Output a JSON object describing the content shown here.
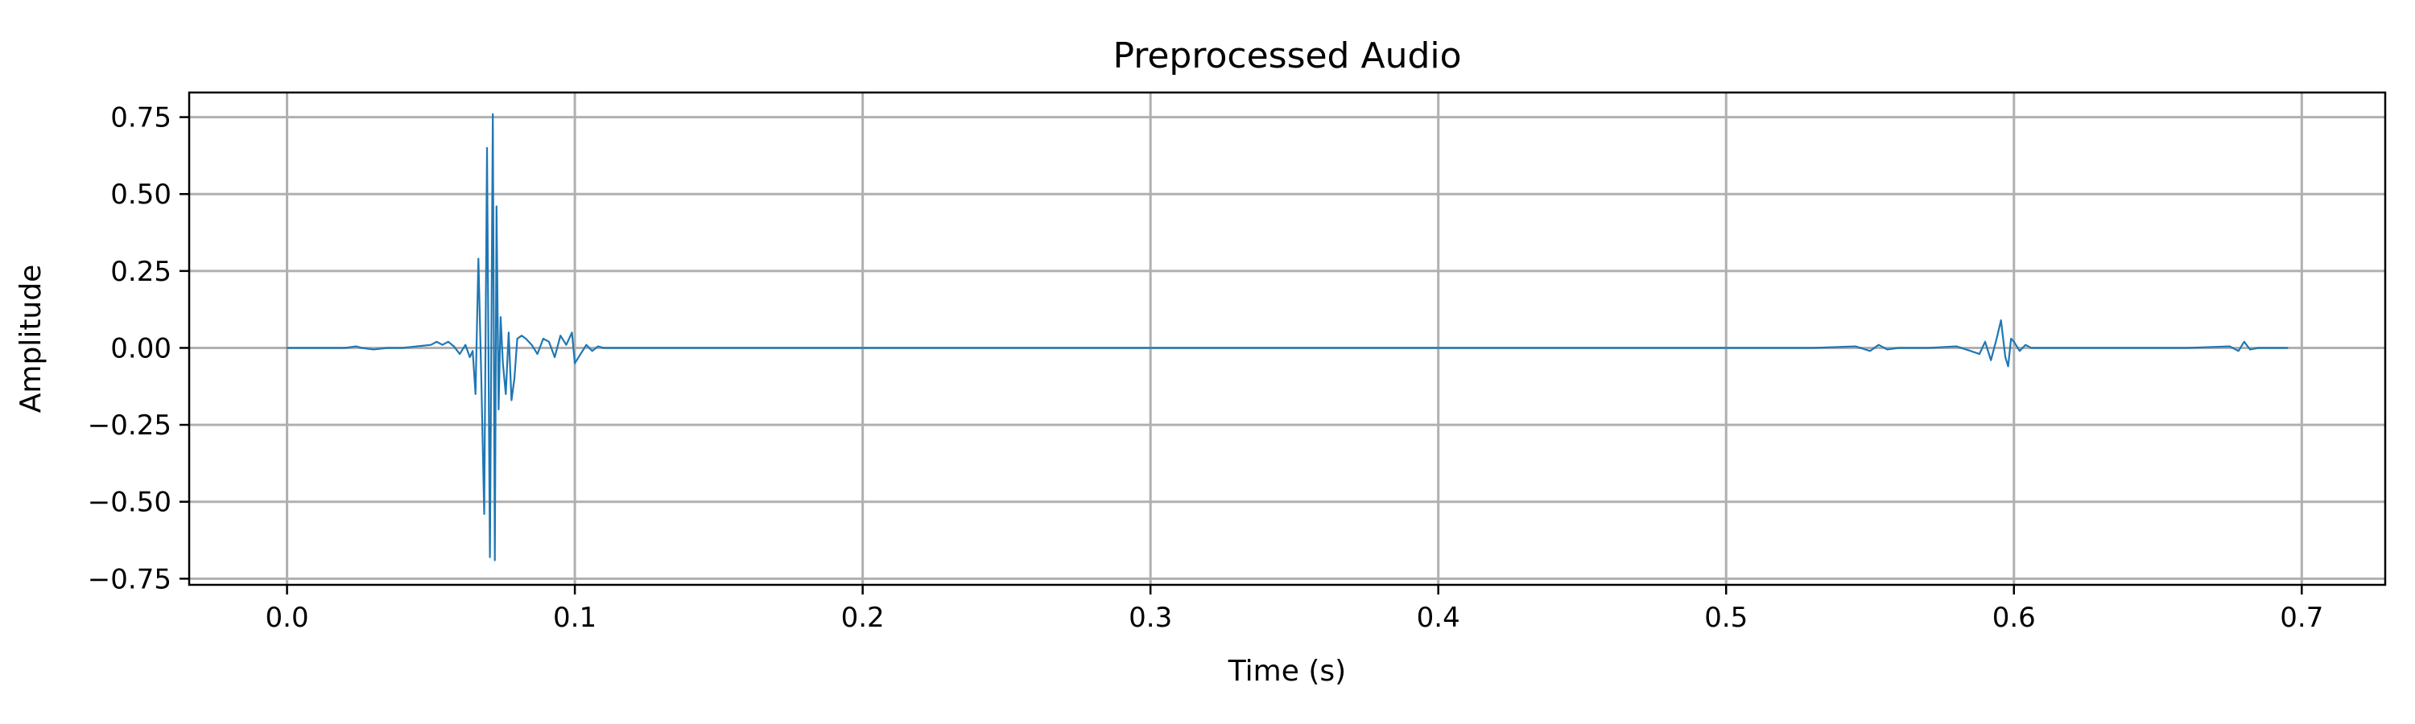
{
  "chart_data": {
    "type": "line",
    "title": "Preprocessed Audio",
    "xlabel": "Time (s)",
    "ylabel": "Amplitude",
    "xlim": [
      -0.034,
      0.729
    ],
    "ylim": [
      -0.77,
      0.83
    ],
    "x_ticks": [
      0.0,
      0.1,
      0.2,
      0.3,
      0.4,
      0.5,
      0.6,
      0.7
    ],
    "x_tick_labels": [
      "0.0",
      "0.1",
      "0.2",
      "0.3",
      "0.4",
      "0.5",
      "0.6",
      "0.7"
    ],
    "y_ticks": [
      0.75,
      0.5,
      0.25,
      0.0,
      -0.25,
      -0.5,
      -0.75
    ],
    "y_tick_labels": [
      "0.75",
      "0.50",
      "0.25",
      "0.00",
      "−0.25",
      "−0.50",
      "−0.75"
    ],
    "grid": true,
    "colors": {
      "series": "#1f77b4",
      "grid": "#b0b0b0"
    },
    "series": [
      {
        "x": [
          0.0,
          0.01,
          0.02,
          0.024,
          0.026,
          0.03,
          0.035,
          0.04,
          0.045,
          0.05,
          0.052,
          0.054,
          0.056,
          0.058,
          0.06,
          0.062,
          0.0635,
          0.0645,
          0.0655,
          0.0665,
          0.0675,
          0.0685,
          0.0695,
          0.0705,
          0.0715,
          0.0722,
          0.0728,
          0.0735,
          0.0742,
          0.075,
          0.076,
          0.077,
          0.078,
          0.079,
          0.08,
          0.0815,
          0.083,
          0.085,
          0.087,
          0.089,
          0.091,
          0.093,
          0.095,
          0.097,
          0.099,
          0.1,
          0.102,
          0.104,
          0.106,
          0.108,
          0.11,
          0.115,
          0.12,
          0.15,
          0.2,
          0.3,
          0.4,
          0.5,
          0.53,
          0.545,
          0.55,
          0.553,
          0.556,
          0.56,
          0.57,
          0.58,
          0.585,
          0.588,
          0.59,
          0.592,
          0.594,
          0.5955,
          0.597,
          0.598,
          0.599,
          0.6,
          0.602,
          0.604,
          0.606,
          0.61,
          0.62,
          0.64,
          0.66,
          0.675,
          0.678,
          0.68,
          0.682,
          0.685,
          0.69,
          0.695
        ],
        "y": [
          0.0,
          0.0,
          0.0,
          0.005,
          0.0,
          -0.005,
          0.0,
          0.0,
          0.005,
          0.01,
          0.02,
          0.01,
          0.02,
          0.005,
          -0.02,
          0.01,
          -0.03,
          -0.01,
          -0.15,
          0.29,
          -0.1,
          -0.54,
          0.65,
          -0.68,
          0.76,
          -0.69,
          0.46,
          -0.2,
          0.1,
          -0.05,
          -0.15,
          0.05,
          -0.17,
          -0.1,
          0.03,
          0.04,
          0.03,
          0.01,
          -0.02,
          0.03,
          0.02,
          -0.03,
          0.04,
          0.01,
          0.05,
          -0.05,
          -0.02,
          0.01,
          -0.01,
          0.005,
          0.0,
          0.0,
          0.0,
          0.0,
          0.0,
          0.0,
          0.0,
          0.0,
          0.0,
          0.005,
          -0.01,
          0.01,
          -0.005,
          0.0,
          0.0,
          0.005,
          -0.01,
          -0.02,
          0.02,
          -0.04,
          0.03,
          0.09,
          -0.03,
          -0.06,
          0.03,
          0.02,
          -0.01,
          0.01,
          0.0,
          0.0,
          0.0,
          0.0,
          0.0,
          0.005,
          -0.01,
          0.02,
          -0.005,
          0.0,
          0.0,
          0.0
        ]
      }
    ]
  }
}
